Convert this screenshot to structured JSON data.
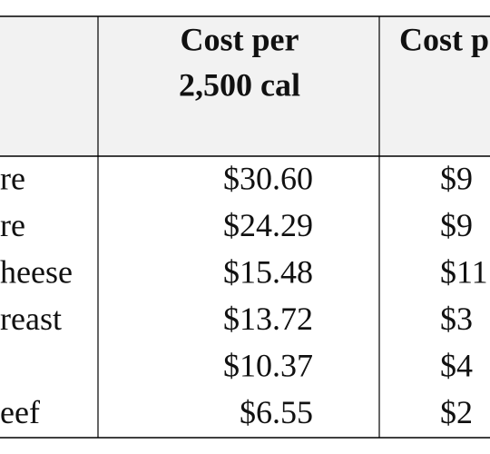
{
  "table": {
    "header": {
      "cost_per_2500": [
        "Cost per",
        "2,500 cal"
      ],
      "next_column": "Cost p"
    },
    "rows": [
      {
        "label": "re",
        "cost": "$30.60",
        "next": "$9"
      },
      {
        "label": "re",
        "cost": "$24.29",
        "next": "$9"
      },
      {
        "label": "heese",
        "cost": "$15.48",
        "next": "$11"
      },
      {
        "label": "reast",
        "cost": "$13.72",
        "next": "$3"
      },
      {
        "cost": "$10.37",
        "next": "$4"
      },
      {
        "label": "eef",
        "cost": "$6.55",
        "next": "$2"
      }
    ]
  }
}
